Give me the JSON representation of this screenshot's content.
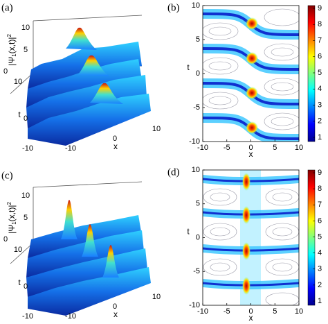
{
  "panels": [
    {
      "label": "(a)",
      "z_label": {
        "base": "|Ψ",
        "sub": "1",
        "mid": "(x,t)|",
        "sup": "2"
      },
      "z_ticks": [
        "10",
        "5",
        "0"
      ],
      "t_label": "t",
      "t_ticks": [
        "10",
        "0",
        "-10"
      ],
      "x_label": "x",
      "x_ticks": [
        "-10",
        "0",
        "10"
      ]
    },
    {
      "label": "(b)",
      "y_label": "t",
      "y_ticks": [
        "10",
        "5",
        "0",
        "-5",
        "-10"
      ],
      "x_label": "x",
      "x_ticks": [
        "-10",
        "-5",
        "0",
        "5",
        "10"
      ],
      "colorbar_ticks": [
        "1",
        "2",
        "3",
        "4",
        "5",
        "6",
        "7",
        "8",
        "9"
      ]
    },
    {
      "label": "(c)",
      "z_label": {
        "base": "|Ψ",
        "sub": "1",
        "mid": "(x,t)|",
        "sup": "2"
      },
      "z_ticks": [
        "10",
        "5",
        "0"
      ],
      "t_label": "t",
      "t_ticks": [
        "10",
        "0",
        "-10"
      ],
      "x_label": "x",
      "x_ticks": [
        "-10",
        "0",
        "10"
      ]
    },
    {
      "label": "(d)",
      "y_label": "t",
      "y_ticks": [
        "10",
        "5",
        "0",
        "-5",
        "-10"
      ],
      "x_label": "x",
      "x_ticks": [
        "-10",
        "-5",
        "0",
        "5",
        "10"
      ],
      "colorbar_ticks": [
        "1",
        "2",
        "3",
        "4",
        "5",
        "6",
        "7",
        "8",
        "9"
      ]
    }
  ]
}
